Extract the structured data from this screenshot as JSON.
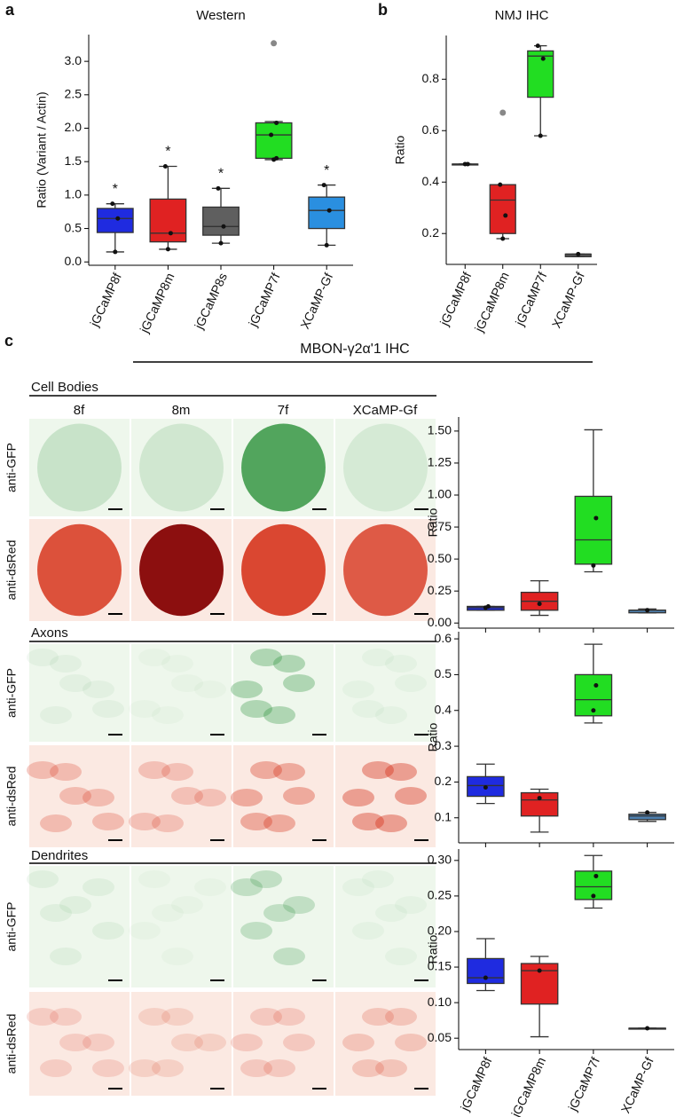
{
  "chart_data": [
    {
      "type": "box",
      "panel": "a",
      "title": "Western",
      "ylabel": "Ratio (Variant / Actin)",
      "ylim": [
        -0.05,
        3.4
      ],
      "yticks": [
        {
          "value": 0,
          "label": "0.0"
        },
        {
          "value": 0.5,
          "label": "0.5"
        },
        {
          "value": 1,
          "label": "1.0"
        },
        {
          "value": 1.5,
          "label": "1.5"
        },
        {
          "value": 2,
          "label": "2.0"
        },
        {
          "value": 2.5,
          "label": "2.5"
        },
        {
          "value": 3,
          "label": "3.0"
        }
      ],
      "boxes": [
        {
          "name": "jGCaMP8f",
          "color": "#1f2be0",
          "min": 0.15,
          "q1": 0.44,
          "median": 0.65,
          "q3": 0.8,
          "max": 0.87,
          "points": [
            0.15,
            0.65,
            0.87
          ],
          "annotation": "*"
        },
        {
          "name": "jGCaMP8m",
          "color": "#e02222",
          "min": 0.19,
          "q1": 0.3,
          "median": 0.43,
          "q3": 0.94,
          "max": 1.43,
          "points": [
            0.19,
            0.43,
            1.43
          ],
          "annotation": "*"
        },
        {
          "name": "jGCaMP8s",
          "color": "#5f5f5f",
          "min": 0.28,
          "q1": 0.4,
          "median": 0.53,
          "q3": 0.82,
          "max": 1.1,
          "points": [
            0.28,
            0.53,
            1.1
          ],
          "annotation": "*"
        },
        {
          "name": "jGCaMP7f",
          "color": "#22dd22",
          "min": 1.53,
          "q1": 1.55,
          "median": 1.9,
          "q3": 2.08,
          "max": 2.1,
          "points": [
            1.53,
            1.55,
            1.9,
            2.08
          ],
          "outliers": [
            3.27
          ]
        },
        {
          "name": "XCaMP-Gf",
          "color": "#2a8fe0",
          "min": 0.25,
          "q1": 0.5,
          "median": 0.77,
          "q3": 0.97,
          "max": 1.15,
          "points": [
            0.25,
            0.77,
            1.15
          ],
          "annotation": "*"
        }
      ]
    },
    {
      "type": "box",
      "panel": "b",
      "title": "NMJ IHC",
      "ylabel": "Ratio",
      "ylim": [
        0.08,
        0.97
      ],
      "yticks": [
        0.2,
        0.4,
        0.6,
        0.8
      ],
      "boxes": [
        {
          "name": "jGCaMP8f",
          "color": "#1f2be0",
          "min": 0.47,
          "q1": 0.47,
          "median": 0.47,
          "q3": 0.47,
          "max": 0.47,
          "points": [
            0.47,
            0.47
          ]
        },
        {
          "name": "jGCaMP8m",
          "color": "#e02222",
          "min": 0.18,
          "q1": 0.2,
          "median": 0.33,
          "q3": 0.39,
          "max": 0.39,
          "points": [
            0.18,
            0.27,
            0.39
          ],
          "outliers": [
            0.67
          ]
        },
        {
          "name": "jGCaMP7f",
          "color": "#22dd22",
          "min": 0.58,
          "q1": 0.73,
          "median": 0.89,
          "q3": 0.91,
          "max": 0.93,
          "points": [
            0.58,
            0.88,
            0.93
          ]
        },
        {
          "name": "XCaMP-Gf",
          "color": "#555555",
          "min": 0.11,
          "q1": 0.11,
          "median": 0.12,
          "q3": 0.12,
          "max": 0.12,
          "points": [
            0.12
          ]
        }
      ]
    },
    {
      "type": "box",
      "ylabel": "Ratio",
      "ylim": [
        -0.04,
        1.61
      ],
      "yticks": [
        {
          "value": 0,
          "label": "0.00"
        },
        {
          "value": 0.25,
          "label": "0.25"
        },
        {
          "value": 0.5,
          "label": "0.50"
        },
        {
          "value": 0.75,
          "label": "0.75"
        },
        {
          "value": 1,
          "label": "1.00"
        },
        {
          "value": 1.25,
          "label": "1.25"
        },
        {
          "value": 1.5,
          "label": "1.50"
        }
      ],
      "boxes": [
        {
          "color": "#1f2be0",
          "min": 0.1,
          "q1": 0.1,
          "median": 0.12,
          "q3": 0.13,
          "max": 0.13,
          "points": [
            0.12,
            0.13
          ]
        },
        {
          "color": "#e02222",
          "min": 0.06,
          "q1": 0.1,
          "median": 0.17,
          "q3": 0.24,
          "max": 0.33,
          "points": [
            0.15
          ]
        },
        {
          "color": "#22dd22",
          "min": 0.4,
          "q1": 0.46,
          "median": 0.65,
          "q3": 0.99,
          "max": 1.51,
          "points": [
            0.45,
            0.82
          ]
        },
        {
          "color": "#4d7fae",
          "min": 0.08,
          "q1": 0.08,
          "median": 0.1,
          "q3": 0.1,
          "max": 0.11,
          "points": [
            0.1
          ]
        }
      ]
    },
    {
      "type": "box",
      "ylabel": "Ratio",
      "ylim": [
        0.03,
        0.62
      ],
      "yticks": [
        0.1,
        0.2,
        0.3,
        0.4,
        0.5,
        0.6
      ],
      "boxes": [
        {
          "color": "#1f2be0",
          "min": 0.14,
          "q1": 0.16,
          "median": 0.19,
          "q3": 0.215,
          "max": 0.25,
          "points": [
            0.185
          ]
        },
        {
          "color": "#e02222",
          "min": 0.06,
          "q1": 0.105,
          "median": 0.15,
          "q3": 0.17,
          "max": 0.18,
          "points": [
            0.155
          ]
        },
        {
          "color": "#22dd22",
          "min": 0.365,
          "q1": 0.385,
          "median": 0.43,
          "q3": 0.5,
          "max": 0.585,
          "points": [
            0.4,
            0.47
          ]
        },
        {
          "color": "#4d7fae",
          "min": 0.09,
          "q1": 0.095,
          "median": 0.105,
          "q3": 0.11,
          "max": 0.115,
          "points": [
            0.115
          ]
        }
      ]
    },
    {
      "type": "box",
      "ylabel": "Ratio",
      "ylim": [
        0.034,
        0.316
      ],
      "yticks": [
        0.05,
        {
          "value": 0.1,
          "label": "0.10"
        },
        0.15,
        {
          "value": 0.2,
          "label": "0.20"
        },
        0.25,
        {
          "value": 0.3,
          "label": "0.30"
        }
      ],
      "boxes": [
        {
          "name": "jGCaMP8f",
          "color": "#1f2be0",
          "min": 0.117,
          "q1": 0.127,
          "median": 0.135,
          "q3": 0.162,
          "max": 0.19,
          "points": [
            0.135
          ]
        },
        {
          "name": "jGCaMP8m",
          "color": "#e02222",
          "min": 0.052,
          "q1": 0.098,
          "median": 0.145,
          "q3": 0.155,
          "max": 0.165,
          "points": [
            0.145
          ]
        },
        {
          "name": "jGCaMP7f",
          "color": "#22dd22",
          "min": 0.233,
          "q1": 0.245,
          "median": 0.263,
          "q3": 0.285,
          "max": 0.307,
          "points": [
            0.25,
            0.278
          ]
        },
        {
          "name": "XCaMP-Gf",
          "color": "#4d7fae",
          "min": 0.064,
          "q1": 0.064,
          "median": 0.064,
          "q3": 0.064,
          "max": 0.064,
          "points": [
            0.064
          ]
        }
      ]
    }
  ],
  "figure_c": {
    "panel": "c",
    "title": "MBON-γ2α'1 IHC",
    "columns": [
      "8f",
      "8m",
      "7f",
      "XCaMP-Gf"
    ],
    "sections": [
      {
        "title": "Cell Bodies",
        "rows": [
          "anti-GFP",
          "anti-dsRed"
        ]
      },
      {
        "title": "Axons",
        "rows": [
          "anti-GFP",
          "anti-dsRed"
        ]
      },
      {
        "title": "Dendrites",
        "rows": [
          "anti-GFP",
          "anti-dsRed"
        ]
      }
    ]
  }
}
